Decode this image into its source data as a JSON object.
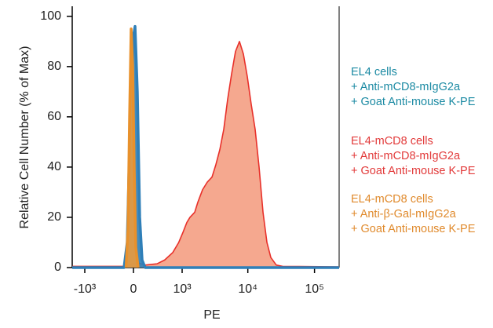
{
  "chart_data": {
    "type": "histogram-overlay",
    "xlabel": "PE",
    "ylabel": "Relative Cell Number (% of Max)",
    "xscale": "biexponential",
    "xlim": [
      -1575,
      234000
    ],
    "xticks": [
      {
        "value": -1000,
        "label": "-10³"
      },
      0,
      {
        "value": 1000,
        "label": "10³"
      },
      {
        "value": 10000,
        "label": "10⁴"
      },
      {
        "value": 100000,
        "label": "10⁵"
      }
    ],
    "ylim": [
      0,
      104
    ],
    "yticks": [
      0,
      20,
      40,
      60,
      80,
      100
    ],
    "series": [
      {
        "name": [
          "EL4-mCD8 cells",
          "+ Anti-mCD8-mIgG2a",
          "+ Goat Anti-mouse K-PE"
        ],
        "color": "#e8302a",
        "fill": "#f5a88f",
        "text_color": "#e23a3a",
        "x": [
          -1575,
          -100,
          50,
          160,
          350,
          500,
          700,
          880,
          1030,
          1190,
          1330,
          1575,
          1760,
          2080,
          2450,
          2890,
          3310,
          3800,
          4350,
          4980,
          5700,
          6530,
          7490,
          8580,
          9820,
          11240,
          12880,
          14750,
          16900,
          19350,
          22150,
          26760,
          33230,
          234000
        ],
        "values": [
          0.5,
          0.5,
          2,
          1,
          1.5,
          3,
          6,
          10,
          14,
          18,
          20,
          22,
          26,
          31,
          34,
          36,
          41,
          47,
          55,
          67,
          77,
          86,
          90,
          85,
          76,
          65,
          55,
          40,
          22,
          10,
          4,
          1,
          0.5,
          0.3
        ]
      },
      {
        "name": [
          "EL4 cells",
          "+ Anti-mCD8-mIgG2a",
          "+ Goat Anti-mouse K-PE"
        ],
        "color": "#2f7fb8",
        "fill": "#2f7fb8",
        "text_color": "#1b8aa3",
        "x": [
          -1575,
          -128,
          -84,
          -42,
          0,
          21,
          52,
          84,
          117,
          160,
          234000
        ],
        "values": [
          0,
          0,
          10,
          60,
          92,
          96,
          70,
          20,
          3,
          0,
          0
        ]
      },
      {
        "name": [
          "EL4-mCD8 cells",
          "+ Anti-β-Gal-mIgG2a",
          "+ Goat Anti-mouse K-PE"
        ],
        "color": "#e8912c",
        "fill": "#eb9a3c",
        "text_color": "#e08a2c",
        "x": [
          -100,
          -74,
          -52,
          -31,
          -10,
          10,
          31,
          63
        ],
        "values": [
          0,
          15,
          60,
          95,
          80,
          40,
          8,
          0
        ]
      }
    ]
  }
}
